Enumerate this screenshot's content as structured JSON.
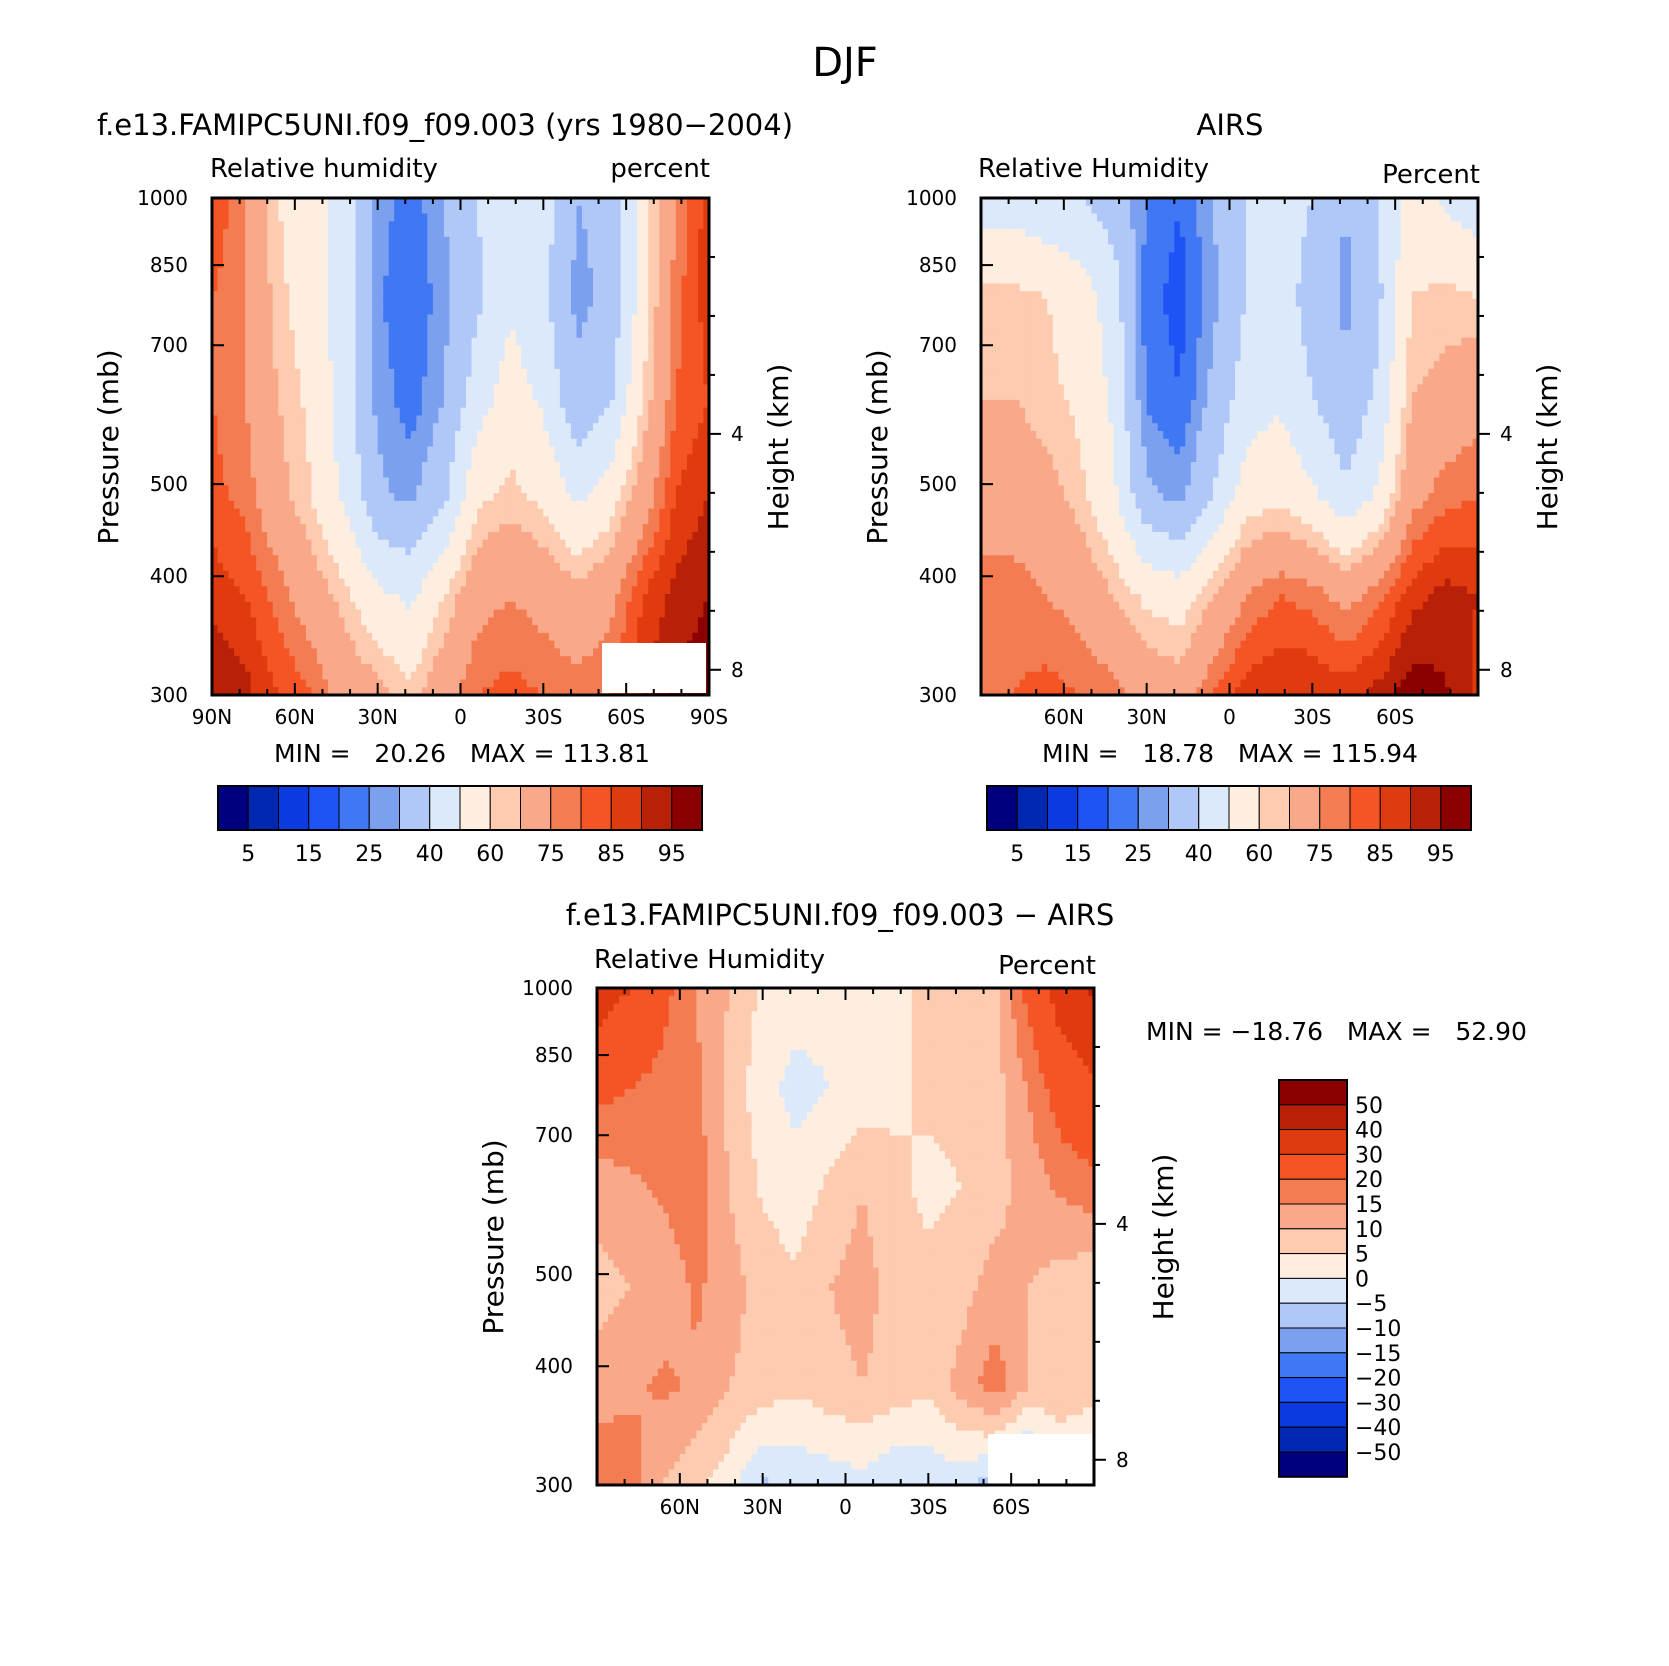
{
  "page_title": "DJF",
  "colors": {
    "palette16": [
      "#00007f",
      "#0027b0",
      "#0a3ae0",
      "#1e54f5",
      "#3f78f2",
      "#7ca0f0",
      "#b0c8f8",
      "#dbe9fb",
      "#fdeee0",
      "#fccbb0",
      "#f9a98a",
      "#f47c52",
      "#f55524",
      "#e03a0f",
      "#b82008",
      "#8b0000"
    ],
    "palette14": [
      "#00007f",
      "#0027b0",
      "#0a3ae0",
      "#1e54f5",
      "#3f78f2",
      "#7ca0f0",
      "#b0c8f8",
      "#dbe9fb",
      "#fdeee0",
      "#fccbb0",
      "#f9a98a",
      "#f47c52",
      "#f55524",
      "#e03a0f",
      "#b82008",
      "#8b0000"
    ]
  },
  "chart_data": [
    {
      "id": "model",
      "type": "heatmap",
      "title": "f.e13.FAMIPC5UNI.f09_f09.003 (yrs 1980−2004)",
      "left_label": "Relative humidity",
      "right_label": "percent",
      "ylabel": "Pressure (mb)",
      "y2label": "Height (km)",
      "y_ticks": [
        "300",
        "400",
        "500",
        "700",
        "850",
        "1000"
      ],
      "y2_ticks": [
        "8",
        "4"
      ],
      "x_ticks": [
        "90N",
        "60N",
        "30N",
        "0",
        "30S",
        "60S",
        "90S"
      ],
      "x_range": [
        90,
        -90
      ],
      "y_range": [
        1000,
        300
      ],
      "min_max": "MIN =   20.26   MAX = 113.81",
      "colorbar_labels": [
        "5",
        "15",
        "25",
        "40",
        "60",
        "75",
        "85",
        "95"
      ],
      "grid": [
        [
          85,
          75,
          60,
          55,
          45,
          28,
          22,
          30,
          40,
          50,
          45,
          30,
          32,
          55,
          75,
          88
        ],
        [
          80,
          75,
          62,
          55,
          45,
          26,
          20,
          28,
          38,
          48,
          42,
          28,
          32,
          55,
          78,
          88
        ],
        [
          80,
          75,
          65,
          58,
          45,
          28,
          22,
          30,
          45,
          55,
          48,
          32,
          38,
          60,
          80,
          85
        ],
        [
          82,
          78,
          68,
          60,
          48,
          32,
          28,
          38,
          58,
          62,
          58,
          48,
          55,
          70,
          85,
          90
        ],
        [
          88,
          85,
          78,
          70,
          62,
          52,
          48,
          60,
          72,
          75,
          72,
          68,
          72,
          85,
          92,
          95
        ],
        [
          95,
          92,
          85,
          80,
          72,
          68,
          62,
          72,
          80,
          82,
          80,
          78,
          80,
          90,
          96,
          98
        ]
      ]
    },
    {
      "id": "obs",
      "type": "heatmap",
      "title": "AIRS",
      "left_label": "Relative Humidity",
      "right_label": "Percent",
      "ylabel": "Pressure (mb)",
      "y2label": "Height (km)",
      "y_ticks": [
        "300",
        "400",
        "500",
        "700",
        "850",
        "1000"
      ],
      "y2_ticks": [
        "8",
        "4"
      ],
      "x_ticks": [
        "60N",
        "30N",
        "0",
        "30S",
        "60S"
      ],
      "x_range": [
        90,
        -90
      ],
      "y_range": [
        1000,
        300
      ],
      "min_max": "MIN =   18.78   MAX = 115.94",
      "colorbar_labels": [
        "5",
        "15",
        "25",
        "40",
        "60",
        "75",
        "85",
        "95"
      ],
      "grid": [
        [
          45,
          45,
          42,
          40,
          35,
          25,
          20,
          30,
          40,
          45,
          40,
          30,
          40,
          55,
          48,
          44
        ],
        [
          62,
          62,
          60,
          55,
          45,
          22,
          18,
          28,
          40,
          45,
          36,
          28,
          38,
          60,
          62,
          60
        ],
        [
          65,
          65,
          62,
          58,
          48,
          24,
          20,
          32,
          45,
          48,
          40,
          32,
          42,
          65,
          68,
          72
        ],
        [
          70,
          70,
          68,
          62,
          52,
          32,
          28,
          40,
          55,
          58,
          52,
          42,
          52,
          72,
          78,
          80
        ],
        [
          78,
          78,
          75,
          72,
          65,
          58,
          55,
          65,
          75,
          80,
          78,
          72,
          78,
          88,
          92,
          90
        ],
        [
          78,
          80,
          82,
          80,
          78,
          72,
          70,
          80,
          88,
          90,
          90,
          88,
          92,
          98,
          96,
          88
        ]
      ]
    },
    {
      "id": "diff",
      "type": "heatmap",
      "title": "f.e13.FAMIPC5UNI.f09_f09.003 − AIRS",
      "left_label": "Relative Humidity",
      "right_label": "Percent",
      "ylabel": "Pressure (mb)",
      "y2label": "Height (km)",
      "y_ticks": [
        "300",
        "400",
        "500",
        "700",
        "850",
        "1000"
      ],
      "y2_ticks": [
        "8",
        "4"
      ],
      "x_ticks": [
        "60N",
        "30N",
        "0",
        "30S",
        "60S"
      ],
      "x_range": [
        90,
        -90
      ],
      "y_range": [
        1000,
        300
      ],
      "min_max": "MIN = −18.76   MAX =   52.90",
      "colorbar_labels": [
        "50",
        "40",
        "30",
        "20",
        "15",
        "10",
        "5",
        "0",
        "−5",
        "−10",
        "−15",
        "−20",
        "−30",
        "−40",
        "−50"
      ],
      "grid": [
        [
          35,
          30,
          22,
          15,
          10,
          4,
          3,
          2,
          3,
          4,
          6,
          5,
          8,
          22,
          35,
          42
        ],
        [
          22,
          20,
          18,
          16,
          8,
          2,
          -2,
          0,
          2,
          4,
          6,
          6,
          8,
          15,
          24,
          28
        ],
        [
          12,
          14,
          16,
          18,
          10,
          4,
          2,
          6,
          10,
          6,
          4,
          5,
          8,
          12,
          16,
          18
        ],
        [
          8,
          10,
          12,
          16,
          12,
          8,
          6,
          10,
          12,
          8,
          6,
          8,
          12,
          10,
          8,
          6
        ],
        [
          12,
          14,
          16,
          14,
          10,
          8,
          6,
          8,
          10,
          8,
          6,
          12,
          18,
          10,
          8,
          6
        ],
        [
          20,
          18,
          10,
          6,
          2,
          -6,
          -4,
          -3,
          -2,
          -5,
          -4,
          -3,
          -8,
          -12,
          0,
          0
        ]
      ]
    }
  ]
}
